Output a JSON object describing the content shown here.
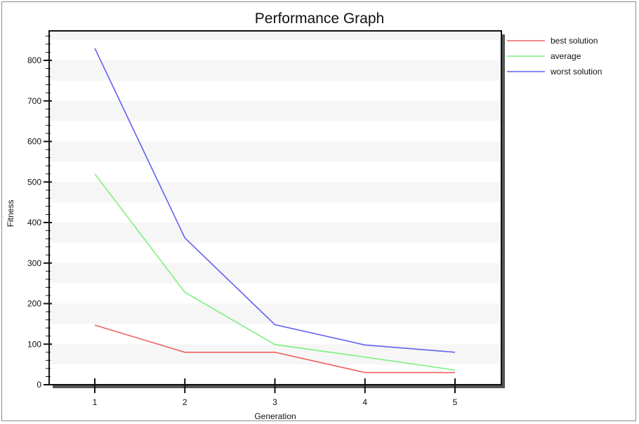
{
  "chart_data": {
    "type": "line",
    "title": "Performance Graph",
    "xlabel": "Generation",
    "ylabel": "Fitness",
    "x": [
      1,
      2,
      3,
      4,
      5
    ],
    "xlim": [
      0.5,
      5.5
    ],
    "ylim": [
      0,
      870
    ],
    "yticks": [
      0,
      100,
      200,
      300,
      400,
      500,
      600,
      700,
      800
    ],
    "grid": "alternating horizontal bands",
    "legend_position": "right",
    "series": [
      {
        "name": "best solution",
        "color": "#f06060",
        "values": [
          147,
          80,
          80,
          30,
          30
        ]
      },
      {
        "name": "average",
        "color": "#7ff07f",
        "values": [
          520,
          228,
          99,
          68,
          36
        ]
      },
      {
        "name": "worst solution",
        "color": "#6060f0",
        "values": [
          830,
          362,
          148,
          98,
          80
        ]
      }
    ]
  }
}
